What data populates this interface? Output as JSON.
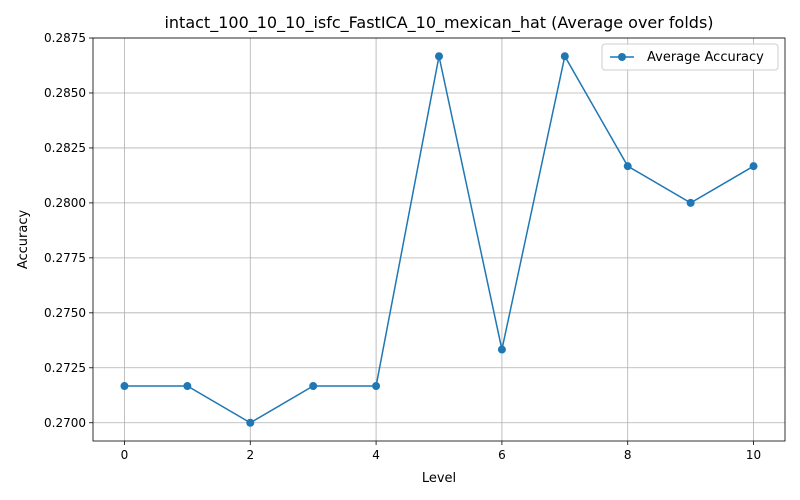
{
  "chart_data": {
    "type": "line",
    "title": "intact_100_10_10_isfc_FastICA_10_mexican_hat (Average over folds)",
    "xlabel": "Level",
    "ylabel": "Accuracy",
    "xlim": [
      -0.5,
      10.5
    ],
    "ylim": [
      0.26917,
      0.2875
    ],
    "xticks": [
      0,
      2,
      4,
      6,
      8,
      10
    ],
    "xtick_labels": [
      "0",
      "2",
      "4",
      "6",
      "8",
      "10"
    ],
    "yticks": [
      0.27,
      0.2725,
      0.275,
      0.2775,
      0.28,
      0.2825,
      0.285,
      0.2875
    ],
    "ytick_labels": [
      "0.2700",
      "0.2725",
      "0.2750",
      "0.2775",
      "0.2800",
      "0.2825",
      "0.2850",
      "0.2875"
    ],
    "grid": true,
    "legend_position": "upper right",
    "series": [
      {
        "name": "Average Accuracy",
        "color": "#1f77b4",
        "marker": "circle",
        "x": [
          0,
          1,
          2,
          3,
          4,
          5,
          6,
          7,
          8,
          9,
          10
        ],
        "values": [
          0.27167,
          0.27167,
          0.27,
          0.27167,
          0.27167,
          0.28667,
          0.27333,
          0.28667,
          0.28167,
          0.28,
          0.28167
        ]
      }
    ]
  }
}
